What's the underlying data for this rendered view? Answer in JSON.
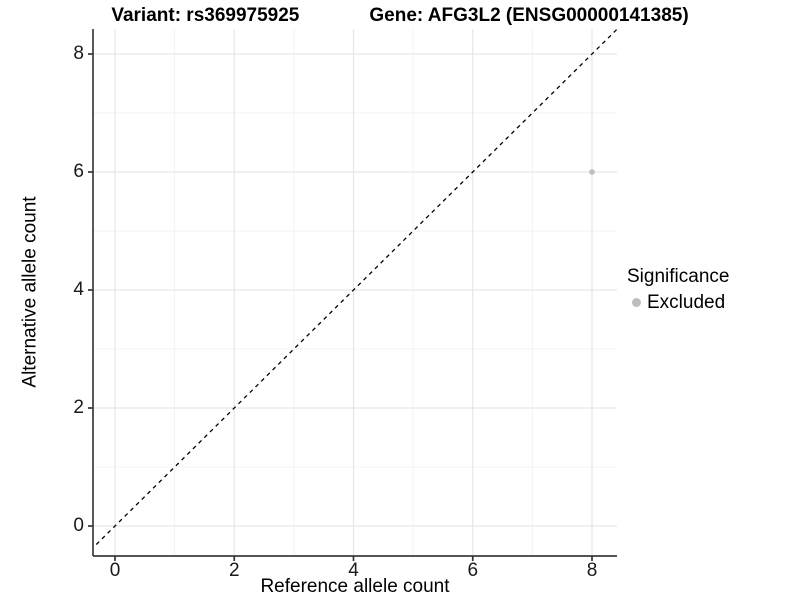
{
  "titles": {
    "variant": "Variant: rs369975925",
    "gene": "Gene: AFG3L2 (ENSG00000141385)"
  },
  "chart_data": {
    "type": "scatter",
    "title": "Variant: rs369975925   Gene: AFG3L2 (ENSG00000141385)",
    "xlabel": "Reference allele count",
    "ylabel": "Alternative allele count",
    "xlim": [
      -0.42,
      8.42
    ],
    "ylim": [
      -0.42,
      8.42
    ],
    "x_ticks": [
      0,
      2,
      4,
      6,
      8
    ],
    "y_ticks": [
      0,
      2,
      4,
      6,
      8
    ],
    "x_minor_ticks": [
      1,
      3,
      5,
      7
    ],
    "y_minor_ticks": [
      1,
      3,
      5,
      7
    ],
    "grid": true,
    "identity_line": {
      "style": "dashed",
      "from": [
        -0.6,
        -0.6
      ],
      "to": [
        8.6,
        8.6
      ],
      "color": "#000000"
    },
    "points": [
      {
        "x": 8,
        "y": 6,
        "series": "Excluded"
      }
    ],
    "legend": {
      "title": "Significance",
      "position": "right",
      "entries": [
        {
          "label": "Excluded",
          "color": "#bdbdbd"
        }
      ]
    }
  },
  "colors": {
    "background": "#ffffff",
    "major_grid": "#e6e6e6",
    "minor_grid": "#f3f3f3",
    "axis_line": "#3c3c3c",
    "tick_mark": "#333333",
    "point": "#bdbdbd",
    "text": "#000000"
  }
}
